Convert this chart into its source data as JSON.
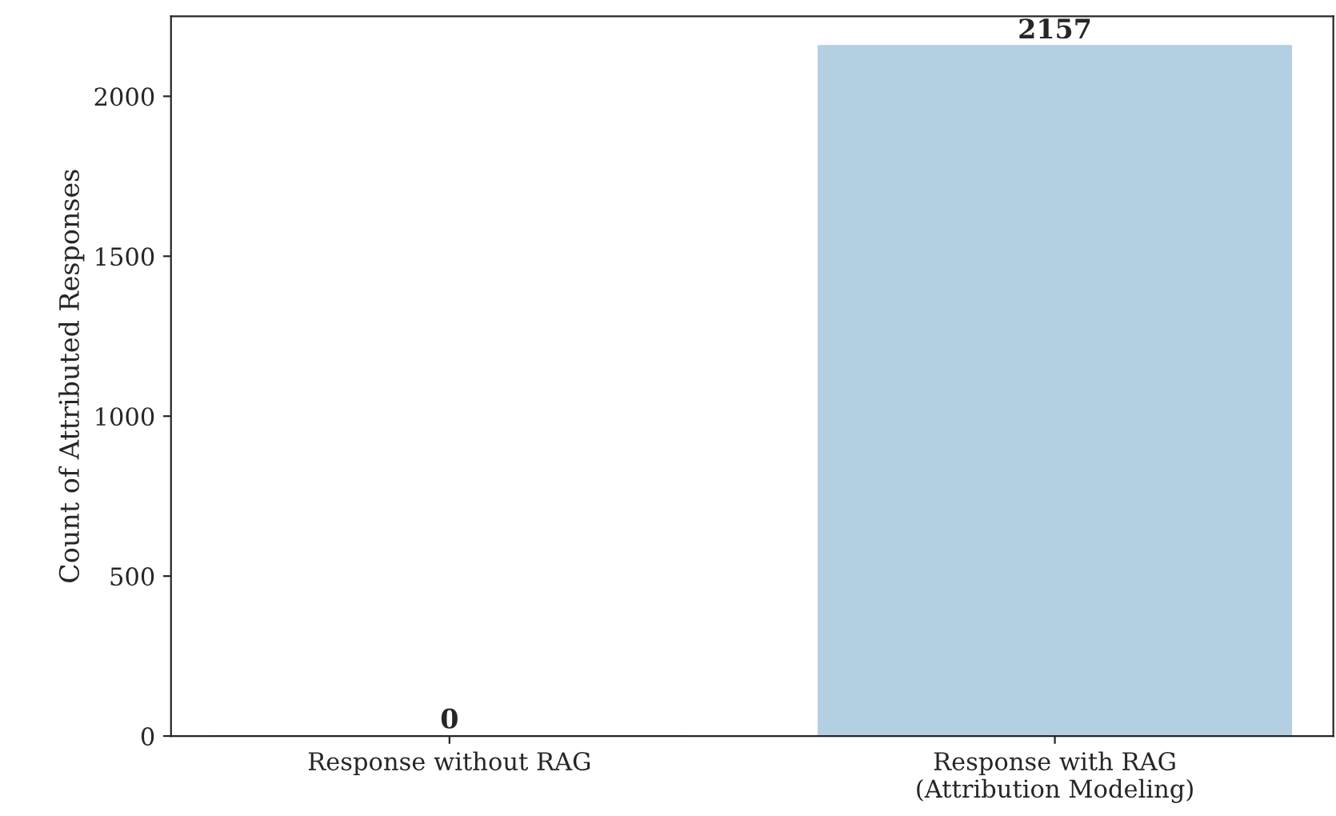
{
  "chart_data": {
    "type": "bar",
    "ylabel": "Count of Attributed Responses",
    "categories": [
      "Response without RAG",
      "Response with RAG\n(Attribution Modeling)"
    ],
    "values": [
      0,
      2157
    ],
    "color": "#b3cfe2",
    "ylim": [
      0,
      2250
    ],
    "yticks": [
      0,
      500,
      1000,
      1500,
      2000
    ],
    "data_labels": true,
    "grid": false,
    "legend": false
  }
}
